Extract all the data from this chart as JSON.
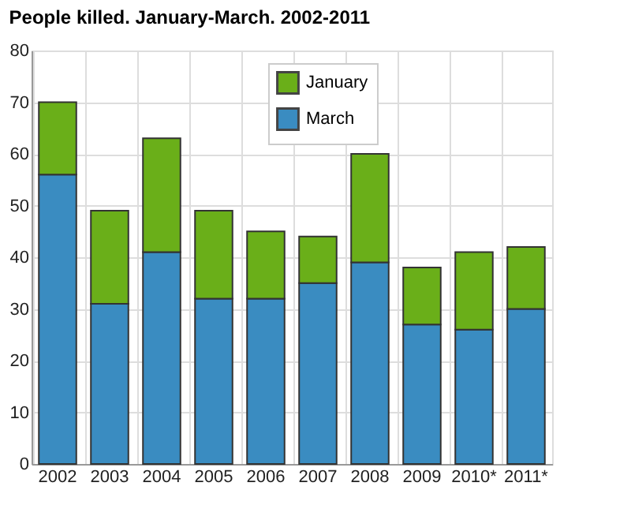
{
  "chart_data": {
    "type": "bar",
    "title": "People killed. January-March. 2002-2011",
    "categories": [
      "2002",
      "2003",
      "2004",
      "2005",
      "2006",
      "2007",
      "2008",
      "2009",
      "2010*",
      "2011*"
    ],
    "stacked": true,
    "series": [
      {
        "name": "March",
        "color": "#3a8cc1",
        "values": [
          56,
          31,
          41,
          32,
          32,
          35,
          39,
          27,
          26,
          30
        ]
      },
      {
        "name": "January",
        "color": "#6aaf19",
        "values": [
          14,
          18,
          22,
          17,
          13,
          9,
          21,
          11,
          15,
          12
        ]
      }
    ],
    "ylim": [
      0,
      80
    ],
    "yticks": [
      0,
      10,
      20,
      30,
      40,
      50,
      60,
      70,
      80
    ],
    "grid": true,
    "legend": "top"
  }
}
